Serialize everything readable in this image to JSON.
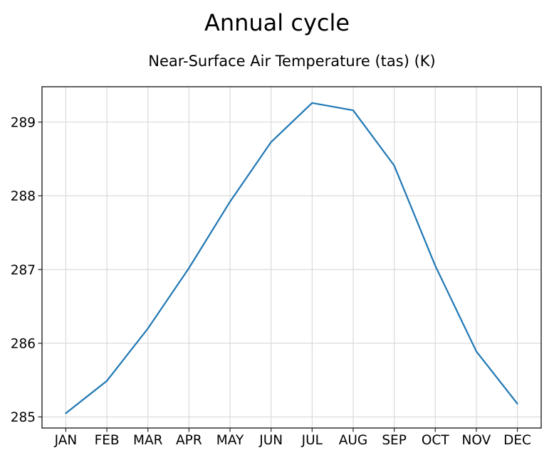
{
  "figure": {
    "suptitle": "Annual cycle",
    "axes_title": "Near-Surface Air Temperature (tas) (K)"
  },
  "chart_data": {
    "type": "line",
    "title": "Annual cycle",
    "subtitle": "Near-Surface Air Temperature (tas) (K)",
    "categories": [
      "JAN",
      "FEB",
      "MAR",
      "APR",
      "MAY",
      "JUN",
      "JUL",
      "AUG",
      "SEP",
      "OCT",
      "NOV",
      "DEC"
    ],
    "series": [
      {
        "name": "near-surface-air-temperature",
        "values": [
          285.05,
          285.49,
          286.2,
          287.02,
          287.92,
          288.73,
          289.26,
          289.16,
          288.41,
          287.05,
          285.89,
          285.18
        ]
      }
    ],
    "xlabel": "",
    "ylabel": "",
    "yticks": [
      285,
      286,
      287,
      288,
      289
    ],
    "ylim": [
      284.85,
      289.48
    ],
    "xlim": [
      -0.58,
      11.58
    ],
    "grid": true,
    "legend": false,
    "line_color": "#1f77b4",
    "grid_color": "#d7d7d7",
    "spine_color": "#222222",
    "tick_color": "#222222",
    "text_color": "#000000",
    "background_color": "#ffffff"
  }
}
